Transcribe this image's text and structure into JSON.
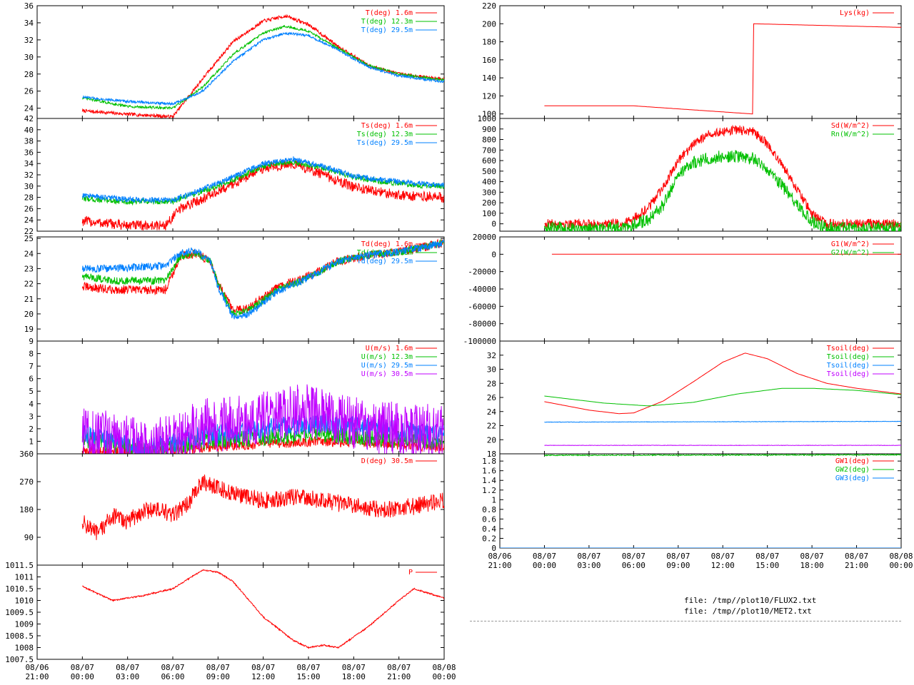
{
  "x_axis": {
    "ticks": [
      {
        "date": "08/06",
        "time": "21:00"
      },
      {
        "date": "08/07",
        "time": "00:00"
      },
      {
        "date": "08/07",
        "time": "03:00"
      },
      {
        "date": "08/07",
        "time": "06:00"
      },
      {
        "date": "08/07",
        "time": "09:00"
      },
      {
        "date": "08/07",
        "time": "12:00"
      },
      {
        "date": "08/07",
        "time": "15:00"
      },
      {
        "date": "08/07",
        "time": "18:00"
      },
      {
        "date": "08/07",
        "time": "21:00"
      },
      {
        "date": "08/08",
        "time": "00:00"
      }
    ],
    "range_hours": [
      -3,
      24
    ]
  },
  "files": [
    "file: /tmp//plot10/FLUX2.txt",
    "file: /tmp//plot10/MET2.txt"
  ],
  "colors": {
    "red": "#ff0000",
    "green": "#00c000",
    "blue": "#0080ff",
    "magenta": "#c000ff"
  },
  "chart_data": [
    {
      "type": "line",
      "column": "left",
      "yticks": [
        "24",
        "26",
        "28",
        "30",
        "32",
        "34",
        "36"
      ],
      "ylim": [
        22.8,
        36
      ],
      "series": [
        {
          "name": "T(deg)  1.6m",
          "color": "#ff0000",
          "noise": 0.2,
          "x": [
            0,
            3,
            6,
            8,
            10,
            12,
            13.5,
            15,
            17,
            19,
            21,
            23,
            24
          ],
          "values": [
            23.7,
            23.3,
            23.0,
            27.5,
            31.8,
            34.2,
            34.8,
            33.8,
            31.2,
            29.0,
            28.0,
            27.6,
            27.4
          ]
        },
        {
          "name": "T(deg) 12.3m",
          "color": "#00c000",
          "noise": 0.15,
          "x": [
            0,
            3,
            6,
            8,
            10,
            12,
            13.5,
            15,
            17,
            19,
            21,
            23,
            24
          ],
          "values": [
            25.2,
            24.2,
            24.0,
            26.5,
            30.3,
            32.8,
            33.6,
            33.0,
            31.0,
            29.0,
            28.0,
            27.5,
            27.3
          ]
        },
        {
          "name": "T(deg) 29.5m",
          "color": "#0080ff",
          "noise": 0.15,
          "x": [
            0,
            3,
            6,
            8,
            10,
            12,
            13.5,
            15,
            17,
            19,
            21,
            23,
            24
          ],
          "values": [
            25.3,
            24.8,
            24.5,
            26.0,
            29.5,
            32.0,
            32.8,
            32.5,
            30.8,
            28.8,
            27.8,
            27.3,
            27.1
          ]
        }
      ]
    },
    {
      "type": "line",
      "column": "left",
      "yticks": [
        "22",
        "24",
        "26",
        "28",
        "30",
        "32",
        "34",
        "36",
        "38",
        "40",
        "42"
      ],
      "ylim": [
        22,
        42
      ],
      "series": [
        {
          "name": "Ts(deg)  1.6m",
          "color": "#ff0000",
          "noise": 0.9,
          "x": [
            0,
            3,
            5.5,
            6.5,
            9,
            12,
            14,
            16,
            18,
            20,
            22,
            24
          ],
          "values": [
            23.8,
            23.0,
            23.0,
            26.0,
            29.0,
            33.2,
            34.0,
            32.0,
            29.8,
            28.8,
            28.2,
            28.0
          ]
        },
        {
          "name": "Ts(deg) 12.3m",
          "color": "#00c000",
          "noise": 0.5,
          "x": [
            0,
            3,
            6,
            9,
            12,
            14,
            16,
            18,
            20,
            22,
            24
          ],
          "values": [
            27.8,
            27.2,
            27.3,
            30.0,
            33.5,
            34.3,
            33.2,
            31.6,
            30.8,
            30.2,
            30.0
          ]
        },
        {
          "name": "Ts(deg) 29.5m",
          "color": "#0080ff",
          "noise": 0.5,
          "x": [
            0,
            3,
            6,
            9,
            12,
            14,
            16,
            18,
            20,
            22,
            24
          ],
          "values": [
            28.4,
            27.6,
            27.5,
            30.5,
            34.0,
            34.8,
            33.5,
            31.8,
            31.0,
            30.5,
            30.2
          ]
        }
      ]
    },
    {
      "type": "line",
      "column": "left",
      "yticks": [
        "19",
        "20",
        "21",
        "22",
        "23",
        "24",
        "25"
      ],
      "ylim": [
        18.2,
        25.1
      ],
      "series": [
        {
          "name": "Td(deg)  1.6m",
          "color": "#ff0000",
          "noise": 0.3,
          "x": [
            0,
            2,
            5.5,
            6.5,
            7.5,
            8.5,
            9,
            10,
            11,
            13,
            15,
            17,
            19,
            21,
            24
          ],
          "values": [
            21.8,
            21.6,
            21.6,
            23.8,
            24.0,
            23.5,
            22.0,
            20.2,
            20.4,
            21.8,
            22.5,
            23.5,
            23.9,
            24.1,
            24.7
          ]
        },
        {
          "name": "Td(deg) 12.3m",
          "color": "#00c000",
          "noise": 0.25,
          "x": [
            0,
            2,
            5.5,
            6.5,
            7.5,
            8.5,
            9,
            10,
            11,
            13,
            15,
            17,
            19,
            21,
            24
          ],
          "values": [
            22.5,
            22.2,
            22.2,
            23.8,
            24.0,
            23.5,
            22.0,
            20.0,
            20.2,
            21.6,
            22.4,
            23.5,
            23.9,
            24.1,
            24.7
          ]
        },
        {
          "name": "Td(deg) 29.5m",
          "color": "#0080ff",
          "noise": 0.25,
          "x": [
            0,
            2,
            5.5,
            6.5,
            7.5,
            8.5,
            9,
            10,
            11,
            13,
            15,
            17,
            19,
            21,
            24
          ],
          "values": [
            23.0,
            23.0,
            23.2,
            24.0,
            24.2,
            23.5,
            21.8,
            19.8,
            20.0,
            21.5,
            22.4,
            23.5,
            23.9,
            24.1,
            24.7
          ]
        }
      ]
    },
    {
      "type": "line",
      "column": "left",
      "yticks": [
        "1",
        "2",
        "3",
        "4",
        "5",
        "6",
        "7",
        "8",
        "9"
      ],
      "ylim": [
        0,
        9
      ],
      "series": [
        {
          "name": "U(m/s)  1.6m",
          "color": "#ff0000",
          "noise": 0.4,
          "x": [
            0,
            6,
            8,
            12,
            16,
            20,
            24
          ],
          "values": [
            0.2,
            0.2,
            0.5,
            0.8,
            1.0,
            0.8,
            0.5
          ]
        },
        {
          "name": "U(m/s) 12.3m",
          "color": "#00c000",
          "noise": 0.7,
          "x": [
            0,
            2,
            4,
            6,
            8,
            12,
            16,
            20,
            24
          ],
          "values": [
            1.2,
            0.8,
            0.3,
            0.6,
            1.0,
            1.3,
            1.6,
            1.2,
            1.0
          ]
        },
        {
          "name": "U(m/s) 29.5m",
          "color": "#0080ff",
          "noise": 0.8,
          "x": [
            0,
            2,
            4,
            6,
            8,
            12,
            16,
            20,
            24
          ],
          "values": [
            1.5,
            1.2,
            0.4,
            0.8,
            1.5,
            2.0,
            2.5,
            2.0,
            1.5
          ]
        },
        {
          "name": "U(m/s) 30.5m",
          "color": "#c000ff",
          "noise": 2.2,
          "x": [
            0,
            2,
            4,
            6,
            8,
            12,
            15,
            18,
            20,
            24
          ],
          "values": [
            1.5,
            1.2,
            0.5,
            1.0,
            2.2,
            2.8,
            3.5,
            2.5,
            2.0,
            1.8
          ]
        }
      ]
    },
    {
      "type": "line",
      "column": "left",
      "yticks": [
        "90",
        "180",
        "270",
        "360"
      ],
      "ylim": [
        0,
        360
      ],
      "series": [
        {
          "name": "D(deg)  30.5m",
          "color": "#ff0000",
          "noise": 28,
          "x": [
            0,
            1,
            2,
            3,
            4,
            5,
            6,
            7,
            8,
            9,
            10,
            12,
            14,
            16,
            18,
            20,
            22,
            24
          ],
          "values": [
            140,
            100,
            160,
            140,
            175,
            180,
            160,
            200,
            270,
            250,
            230,
            210,
            220,
            210,
            190,
            180,
            190,
            210
          ]
        }
      ]
    },
    {
      "type": "line",
      "column": "left",
      "yticks": [
        "1007.5",
        "1008",
        "1008.5",
        "1009",
        "1009.5",
        "1010",
        "1010.5",
        "1011",
        "1011.5"
      ],
      "ylim": [
        1007.5,
        1011.5
      ],
      "series": [
        {
          "name": "P",
          "color": "#ff0000",
          "noise": 0.03,
          "x": [
            0,
            2,
            4,
            6,
            8,
            9,
            10,
            12,
            14,
            15,
            16,
            17,
            19,
            21,
            22,
            24
          ],
          "values": [
            1010.6,
            1010.0,
            1010.2,
            1010.5,
            1011.3,
            1011.2,
            1010.8,
            1009.3,
            1008.3,
            1008.0,
            1008.1,
            1008.0,
            1008.9,
            1010.0,
            1010.5,
            1010.1
          ]
        }
      ]
    },
    {
      "type": "line",
      "column": "right",
      "yticks": [
        "100",
        "120",
        "140",
        "160",
        "180",
        "200",
        "220"
      ],
      "ylim": [
        95,
        220
      ],
      "series": [
        {
          "name": "Lys(kg)",
          "color": "#ff0000",
          "noise": 0,
          "x": [
            0,
            6,
            14,
            14.01,
            24
          ],
          "values": [
            109,
            109,
            100,
            200,
            196
          ]
        }
      ]
    },
    {
      "type": "line",
      "column": "right",
      "yticks": [
        "0",
        "100",
        "200",
        "300",
        "400",
        "500",
        "600",
        "700",
        "800",
        "900",
        "1000"
      ],
      "ylim": [
        -70,
        1000
      ],
      "series": [
        {
          "name": "Sd(W/m^2)",
          "color": "#ff0000",
          "noise": 45,
          "x": [
            0,
            4,
            5.5,
            7,
            8,
            9,
            10,
            11,
            12,
            13,
            14,
            15,
            16,
            17,
            18,
            19,
            24
          ],
          "values": [
            0,
            0,
            10,
            150,
            350,
            600,
            750,
            850,
            880,
            890,
            880,
            760,
            560,
            330,
            90,
            0,
            0
          ]
        },
        {
          "name": "Rn(W/m^2)",
          "color": "#00c000",
          "noise": 60,
          "x": [
            0,
            4,
            5.5,
            7,
            8,
            9,
            10,
            11,
            12,
            13,
            14,
            15,
            16,
            17,
            18,
            19,
            24
          ],
          "values": [
            -40,
            -40,
            -30,
            40,
            180,
            450,
            580,
            620,
            640,
            640,
            620,
            520,
            360,
            180,
            20,
            -40,
            -40
          ]
        }
      ]
    },
    {
      "type": "line",
      "column": "right",
      "yticks": [
        "-100000",
        "-80000",
        "-60000",
        "-40000",
        "-20000",
        "0",
        "20000"
      ],
      "ylim": [
        -100000,
        20000
      ],
      "series": [
        {
          "name": "G1(W/m^2)",
          "color": "#ff0000",
          "noise": 0,
          "x": [
            0.5,
            24
          ],
          "values": [
            0,
            0
          ]
        },
        {
          "name": "G2(W/m^2)",
          "color": "#00c000",
          "noise": 0,
          "x": [],
          "values": []
        }
      ]
    },
    {
      "type": "line",
      "column": "right",
      "yticks": [
        "18",
        "20",
        "22",
        "24",
        "26",
        "28",
        "30",
        "32"
      ],
      "ylim": [
        18,
        34
      ],
      "series": [
        {
          "name": "Tsoil(deg)",
          "color": "#ff0000",
          "noise": 0,
          "x": [
            0,
            3,
            5,
            6,
            8,
            10,
            12,
            13.5,
            15,
            17,
            19,
            21,
            24
          ],
          "values": [
            25.4,
            24.2,
            23.7,
            23.8,
            25.5,
            28.2,
            31.0,
            32.3,
            31.5,
            29.4,
            28.0,
            27.3,
            26.5
          ]
        },
        {
          "name": "Tsoil(deg)",
          "color": "#00c000",
          "noise": 0,
          "x": [
            0,
            4,
            7,
            10,
            13,
            16,
            18,
            21,
            24
          ],
          "values": [
            26.2,
            25.2,
            24.8,
            25.3,
            26.5,
            27.3,
            27.3,
            27.0,
            26.4
          ]
        },
        {
          "name": "Tsoil(deg)",
          "color": "#0080ff",
          "noise": 0.03,
          "x": [
            0,
            24
          ],
          "values": [
            22.5,
            22.6
          ]
        },
        {
          "name": "Tsoil(deg)",
          "color": "#c000ff",
          "noise": 0.03,
          "x": [
            0,
            24
          ],
          "values": [
            19.2,
            19.2
          ]
        }
      ]
    },
    {
      "type": "line",
      "column": "right",
      "yticks": [
        "0",
        "0.2",
        "0.4",
        "0.6",
        "0.8",
        "1",
        "1.2",
        "1.4",
        "1.6",
        "1.8"
      ],
      "ylim": [
        0,
        1.95
      ],
      "series": [
        {
          "name": "GW1(deg)",
          "color": "#ff0000",
          "noise": 0,
          "x": [],
          "values": []
        },
        {
          "name": "GW2(deg)",
          "color": "#00c000",
          "noise": 0.01,
          "x": [
            0,
            24
          ],
          "values": [
            1.92,
            1.93
          ]
        },
        {
          "name": "GW3(deg)",
          "color": "#0080ff",
          "noise": 0,
          "x": [
            -3,
            24
          ],
          "values": [
            0,
            0
          ]
        }
      ]
    }
  ]
}
